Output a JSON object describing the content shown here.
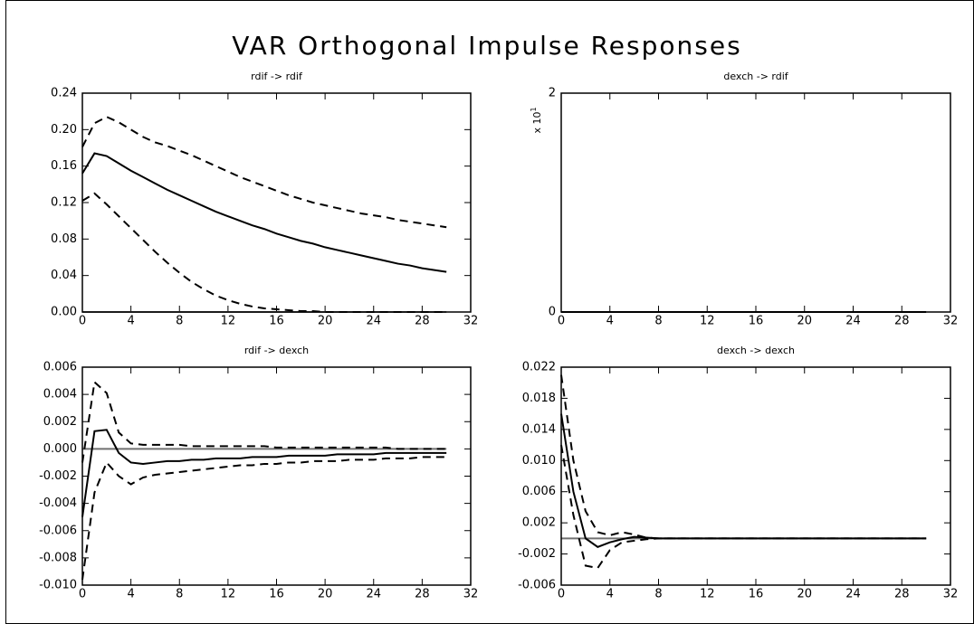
{
  "title": "VAR Orthogonal Impulse Responses",
  "chart_data": [
    {
      "type": "line",
      "title": "rdif -> rdif",
      "x": [
        0,
        1,
        2,
        3,
        4,
        5,
        6,
        7,
        8,
        9,
        10,
        11,
        12,
        13,
        14,
        15,
        16,
        17,
        18,
        19,
        20,
        21,
        22,
        23,
        24,
        25,
        26,
        27,
        28,
        29,
        30
      ],
      "series": [
        {
          "color": "#000000",
          "line_style": "solid",
          "values": [
            0.152,
            0.174,
            0.171,
            0.163,
            0.155,
            0.148,
            0.141,
            0.134,
            0.128,
            0.122,
            0.116,
            0.11,
            0.105,
            0.1,
            0.095,
            0.091,
            0.086,
            0.082,
            0.078,
            0.075,
            0.071,
            0.068,
            0.065,
            0.062,
            0.059,
            0.056,
            0.053,
            0.051,
            0.048,
            0.046,
            0.044
          ]
        },
        {
          "color": "#000000",
          "line_style": "dashed",
          "values": [
            0.181,
            0.207,
            0.214,
            0.208,
            0.2,
            0.192,
            0.186,
            0.182,
            0.177,
            0.172,
            0.166,
            0.16,
            0.154,
            0.148,
            0.143,
            0.138,
            0.133,
            0.128,
            0.124,
            0.12,
            0.117,
            0.114,
            0.111,
            0.108,
            0.106,
            0.104,
            0.101,
            0.099,
            0.097,
            0.095,
            0.093
          ]
        },
        {
          "color": "#000000",
          "line_style": "dashed",
          "values": [
            0.122,
            0.13,
            0.118,
            0.105,
            0.092,
            0.079,
            0.066,
            0.054,
            0.043,
            0.033,
            0.025,
            0.018,
            0.013,
            0.009,
            0.006,
            0.004,
            0.003,
            0.002,
            0.001,
            0.001,
            0,
            0,
            0,
            0,
            0,
            0,
            0,
            0,
            0,
            0,
            0
          ]
        }
      ],
      "xlim": [
        0,
        32
      ],
      "xticks": [
        0,
        4,
        8,
        12,
        16,
        20,
        24,
        28,
        32
      ],
      "ylim": [
        0,
        0.24
      ],
      "yticks": [
        {
          "value": 0,
          "label": "0.00"
        },
        {
          "value": 0.04,
          "label": "0.04"
        },
        {
          "value": 0.08,
          "label": "0.08"
        },
        {
          "value": 0.12,
          "label": "0.12"
        },
        {
          "value": 0.16,
          "label": "0.16"
        },
        {
          "value": 0.2,
          "label": "0.20"
        },
        {
          "value": 0.24,
          "label": "0.24"
        }
      ],
      "zero_line": true,
      "zero_line_color": "#707070"
    },
    {
      "type": "line",
      "title": "dexch -> rdif",
      "x": [
        0,
        1,
        2,
        3,
        4,
        5,
        6,
        7,
        8,
        9,
        10,
        11,
        12,
        13,
        14,
        15,
        16,
        17,
        18,
        19,
        20,
        21,
        22,
        23,
        24,
        25,
        26,
        27,
        28,
        29,
        30
      ],
      "series": [
        {
          "color": "#000000",
          "line_style": "solid",
          "values": [
            0,
            0,
            0,
            0,
            0,
            0,
            0,
            0,
            0,
            0,
            0,
            0,
            0,
            0,
            0,
            0,
            0,
            0,
            0,
            0,
            0,
            0,
            0,
            0,
            0,
            0,
            0,
            0,
            0,
            0,
            0
          ]
        }
      ],
      "xlim": [
        0,
        32
      ],
      "xticks": [
        0,
        4,
        8,
        12,
        16,
        20,
        24,
        28,
        32
      ],
      "ylim": [
        0,
        2
      ],
      "yticks": [
        0,
        2
      ],
      "y_scale_label": "x 10",
      "y_scale_exponent": "1",
      "zero_line": false,
      "zero_line_color": "#707070"
    },
    {
      "type": "line",
      "title": "rdif -> dexch",
      "x": [
        0,
        1,
        2,
        3,
        4,
        5,
        6,
        7,
        8,
        9,
        10,
        11,
        12,
        13,
        14,
        15,
        16,
        17,
        18,
        19,
        20,
        21,
        22,
        23,
        24,
        25,
        26,
        27,
        28,
        29,
        30
      ],
      "series": [
        {
          "color": "#000000",
          "line_style": "solid",
          "values": [
            -0.005,
            0.0013,
            0.0014,
            -0.0003,
            -0.001,
            -0.0011,
            -0.001,
            -0.0009,
            -0.0009,
            -0.0008,
            -0.0008,
            -0.0007,
            -0.0007,
            -0.0007,
            -0.0006,
            -0.0006,
            -0.0006,
            -0.0005,
            -0.0005,
            -0.0005,
            -0.0005,
            -0.0004,
            -0.0004,
            -0.0004,
            -0.0004,
            -0.0003,
            -0.0003,
            -0.0003,
            -0.0003,
            -0.0003,
            -0.0003
          ]
        },
        {
          "color": "#000000",
          "line_style": "dashed",
          "values": [
            -0.001,
            0.0049,
            0.0041,
            0.0012,
            0.0004,
            0.0003,
            0.0003,
            0.0003,
            0.0003,
            0.0002,
            0.0002,
            0.0002,
            0.0002,
            0.0002,
            0.0002,
            0.0002,
            0.0001,
            0.0001,
            0.0001,
            0.0001,
            0.0001,
            0.0001,
            0.0001,
            0.0001,
            0.0001,
            0.0001,
            0,
            0,
            0,
            0,
            0
          ]
        },
        {
          "color": "#000000",
          "line_style": "dashed",
          "values": [
            -0.0096,
            -0.0032,
            -0.001,
            -0.002,
            -0.0026,
            -0.0021,
            -0.0019,
            -0.0018,
            -0.0017,
            -0.0016,
            -0.0015,
            -0.0014,
            -0.0013,
            -0.0012,
            -0.0012,
            -0.0011,
            -0.0011,
            -0.001,
            -0.001,
            -0.0009,
            -0.0009,
            -0.0009,
            -0.0008,
            -0.0008,
            -0.0008,
            -0.0007,
            -0.0007,
            -0.0007,
            -0.0006,
            -0.0006,
            -0.0006
          ]
        }
      ],
      "xlim": [
        0,
        32
      ],
      "xticks": [
        0,
        4,
        8,
        12,
        16,
        20,
        24,
        28,
        32
      ],
      "ylim": [
        -0.01,
        0.006
      ],
      "yticks": [
        {
          "value": -0.01,
          "label": "-0.010"
        },
        {
          "value": -0.008,
          "label": "-0.008"
        },
        {
          "value": -0.006,
          "label": "-0.006"
        },
        {
          "value": -0.004,
          "label": "-0.004"
        },
        {
          "value": -0.002,
          "label": "-0.002"
        },
        {
          "value": 0,
          "label": "0.000"
        },
        {
          "value": 0.002,
          "label": "0.002"
        },
        {
          "value": 0.004,
          "label": "0.004"
        },
        {
          "value": 0.006,
          "label": "0.006"
        }
      ],
      "zero_line": true,
      "zero_line_color": "#707070"
    },
    {
      "type": "line",
      "title": "dexch -> dexch",
      "x": [
        0,
        1,
        2,
        3,
        4,
        5,
        6,
        7,
        8,
        9,
        10,
        11,
        12,
        13,
        14,
        15,
        16,
        17,
        18,
        19,
        20,
        21,
        22,
        23,
        24,
        25,
        26,
        27,
        28,
        29,
        30
      ],
      "series": [
        {
          "color": "#000000",
          "line_style": "solid",
          "values": [
            0.016,
            0.006,
            0,
            -0.0011,
            -0.0005,
            -0.0001,
            0.0002,
            0.0001,
            0,
            0,
            0,
            0,
            0,
            0,
            0,
            0,
            0,
            0,
            0,
            0,
            0,
            0,
            0,
            0,
            0,
            0,
            0,
            0,
            0,
            0,
            0
          ]
        },
        {
          "color": "#000000",
          "line_style": "dashed",
          "values": [
            0.021,
            0.01,
            0.0035,
            0.0008,
            0.0004,
            0.0008,
            0.0005,
            0.0001,
            0,
            0,
            0,
            0,
            0,
            0,
            0,
            0,
            0,
            0,
            0,
            0,
            0,
            0,
            0,
            0,
            0,
            0,
            0,
            0,
            0,
            0,
            0
          ]
        },
        {
          "color": "#000000",
          "line_style": "dashed",
          "values": [
            0.012,
            0.003,
            -0.0035,
            -0.0038,
            -0.0015,
            -0.0005,
            -0.0003,
            -0.0001,
            0,
            0,
            0,
            0,
            0,
            0,
            0,
            0,
            0,
            0,
            0,
            0,
            0,
            0,
            0,
            0,
            0,
            0,
            0,
            0,
            0,
            0,
            0
          ]
        }
      ],
      "xlim": [
        0,
        32
      ],
      "xticks": [
        0,
        4,
        8,
        12,
        16,
        20,
        24,
        28,
        32
      ],
      "ylim": [
        -0.006,
        0.022
      ],
      "yticks": [
        {
          "value": -0.006,
          "label": "-0.006"
        },
        {
          "value": -0.002,
          "label": "-0.002"
        },
        {
          "value": 0.002,
          "label": "0.002"
        },
        {
          "value": 0.006,
          "label": "0.006"
        },
        {
          "value": 0.01,
          "label": "0.010"
        },
        {
          "value": 0.014,
          "label": "0.014"
        },
        {
          "value": 0.018,
          "label": "0.018"
        },
        {
          "value": 0.022,
          "label": "0.022"
        }
      ],
      "zero_line": true,
      "zero_line_color": "#707070"
    }
  ]
}
